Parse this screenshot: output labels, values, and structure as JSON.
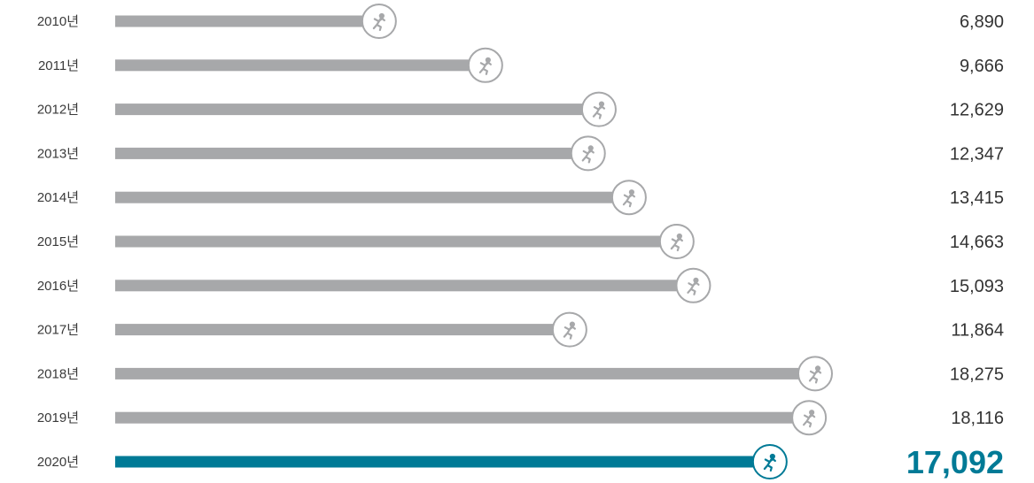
{
  "chart_data": {
    "type": "bar",
    "orientation": "horizontal",
    "categories": [
      "2010년",
      "2011년",
      "2012년",
      "2013년",
      "2014년",
      "2015년",
      "2016년",
      "2017년",
      "2018년",
      "2019년",
      "2020년"
    ],
    "values": [
      6890,
      9666,
      12629,
      12347,
      13415,
      14663,
      15093,
      11864,
      18275,
      18116,
      17092
    ],
    "value_labels": [
      "6,890",
      "9,666",
      "12,629",
      "12,347",
      "13,415",
      "14,663",
      "15,093",
      "11,864",
      "18,275",
      "18,116",
      "17,092"
    ],
    "highlight_category": "2020년",
    "marker_icon": "running-person-icon",
    "grid": false,
    "legend": "none",
    "colors": {
      "bar": "#a7a8aa",
      "highlight": "#007a96",
      "marker_stroke": "#a7a8aa",
      "highlight_marker_stroke": "#007a96"
    }
  }
}
